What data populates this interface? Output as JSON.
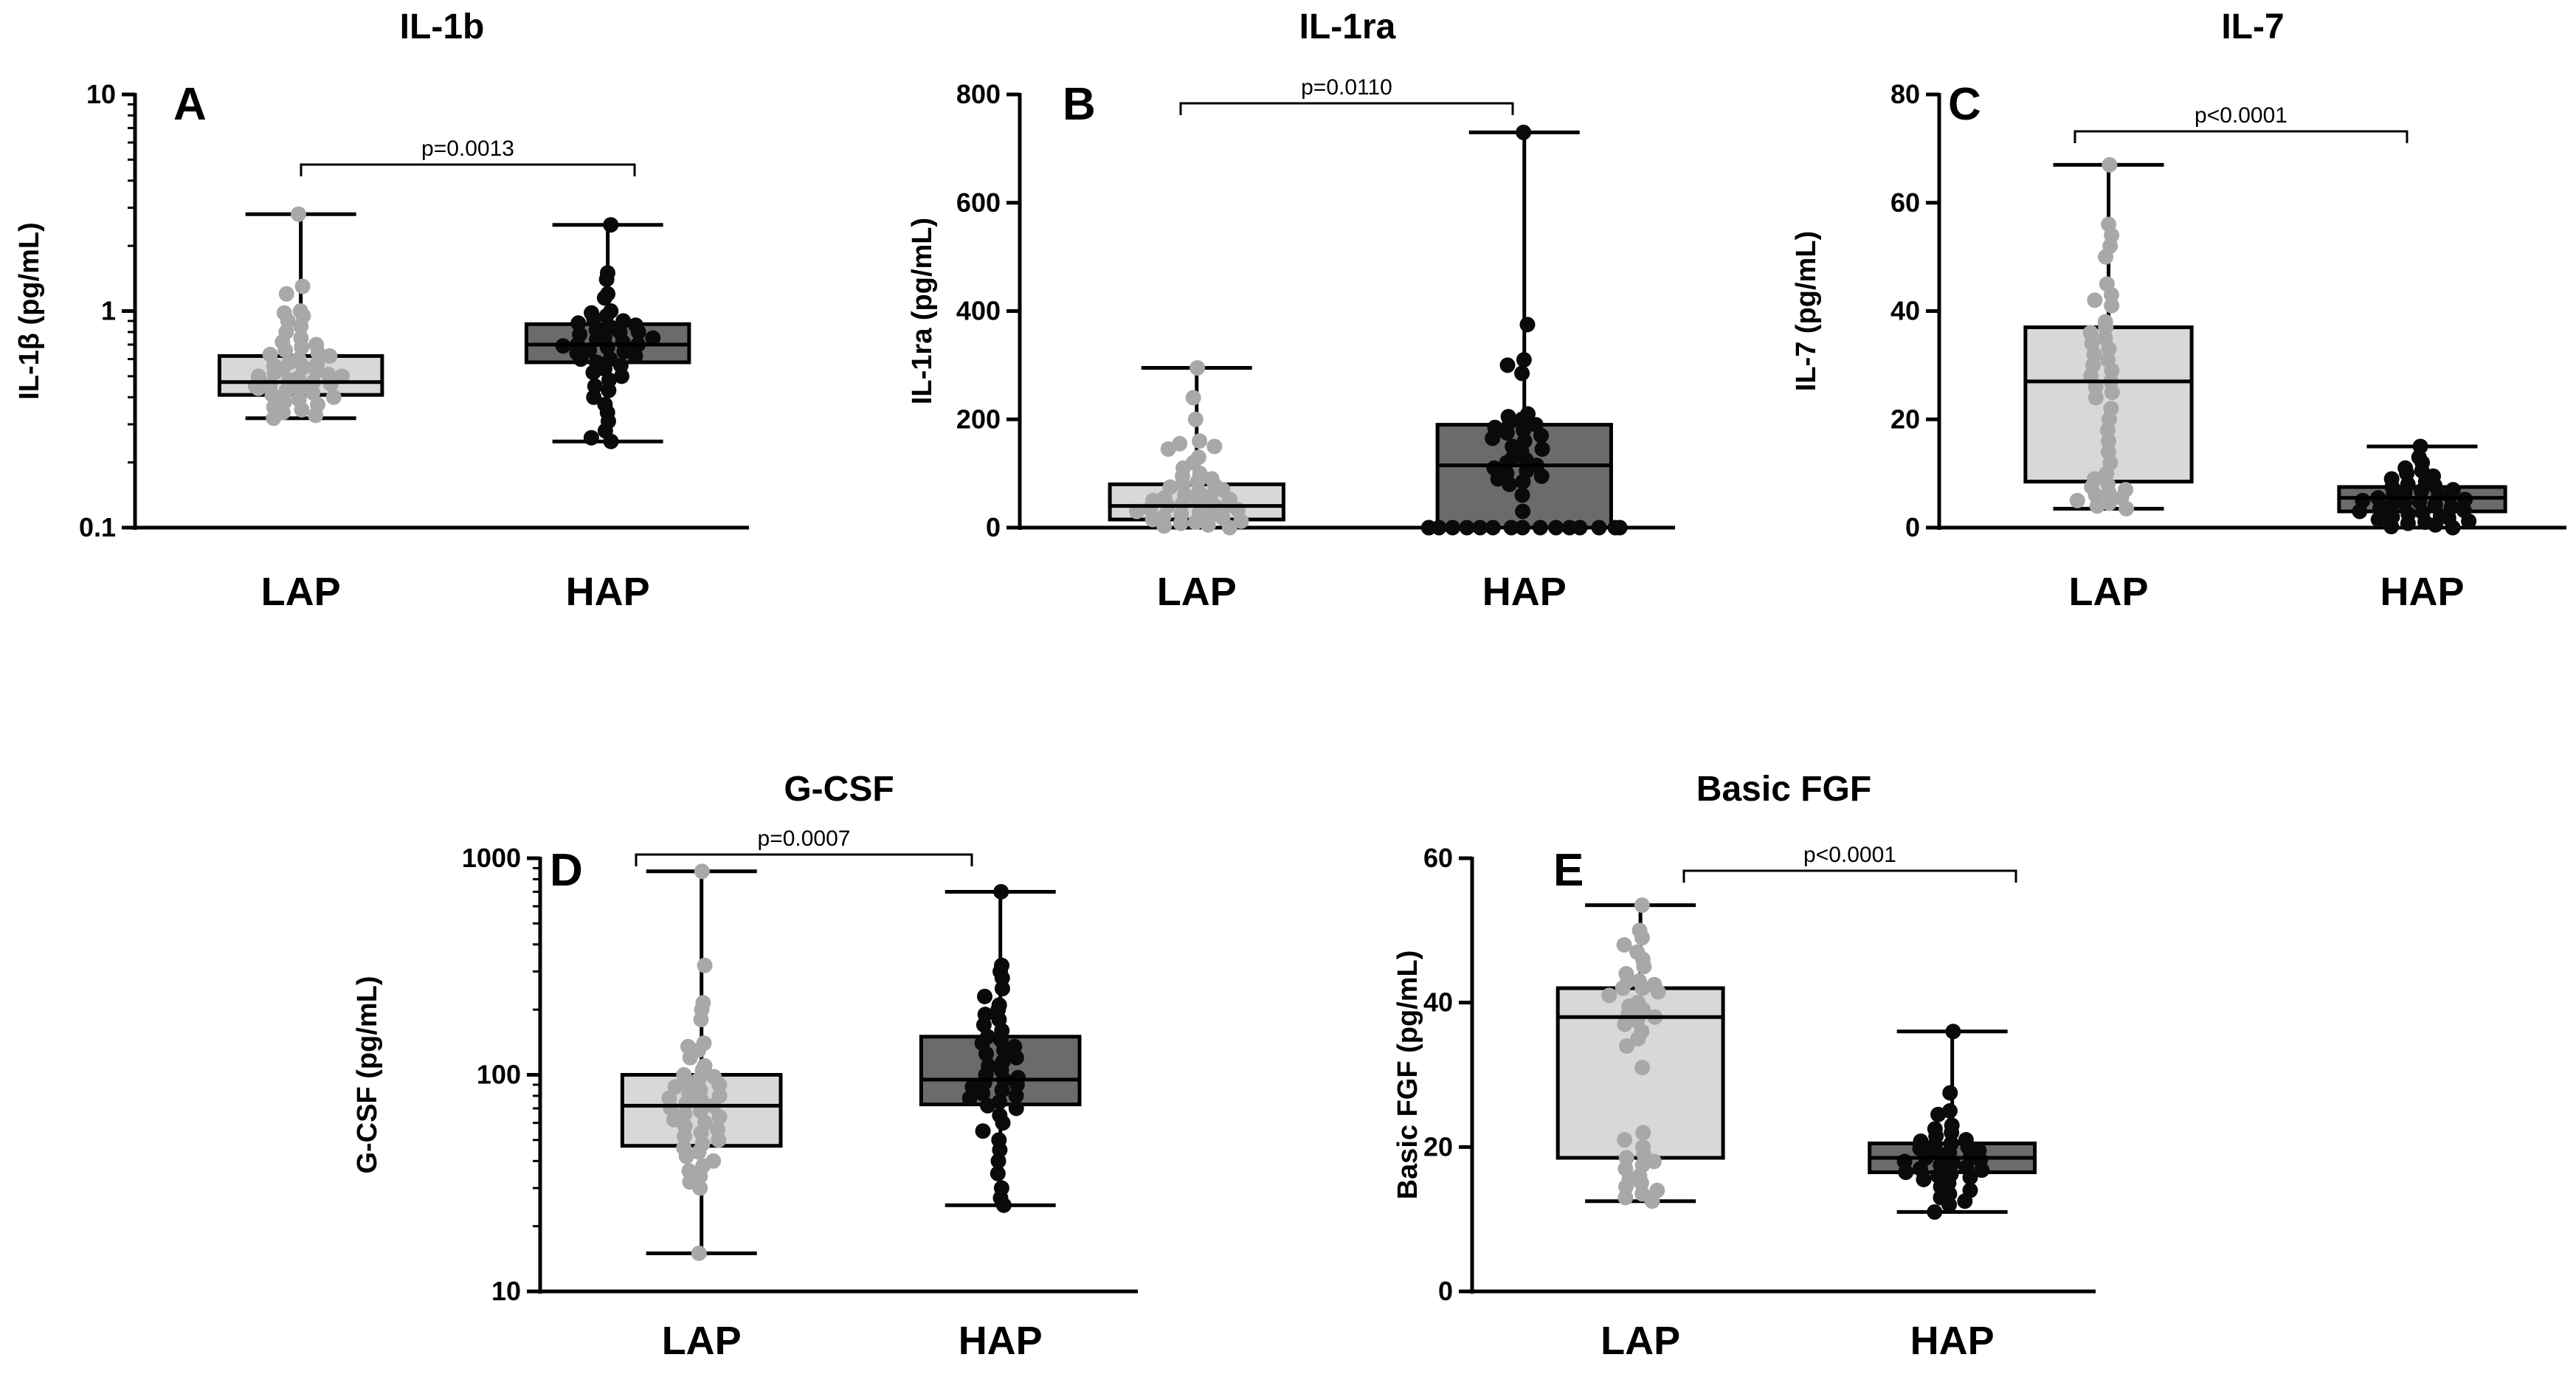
{
  "colors": {
    "lap_box": "#d8d8d8",
    "hap_box": "#6b6b6b",
    "lap_dot": "#a8a8a8",
    "hap_dot": "#0a0a0a",
    "line": "#000000"
  },
  "chart_data": [
    {
      "id": "A",
      "type": "box",
      "title": "IL-1b",
      "letter": "A",
      "ylabel": "IL-1β (pg/mL)",
      "scale": "log",
      "ylim": [
        0.1,
        10
      ],
      "yticks": [
        0.1,
        1,
        10
      ],
      "ytick_labels": [
        "0.1",
        "1",
        "10"
      ],
      "categories": [
        "LAP",
        "HAP"
      ],
      "pvalue": "p=0.0013",
      "groups": [
        {
          "name": "LAP",
          "min": 0.32,
          "q1": 0.41,
          "median": 0.47,
          "q3": 0.62,
          "max": 2.8,
          "points": [
            2.8,
            1.3,
            1.2,
            1.0,
            0.98,
            0.95,
            0.9,
            0.85,
            0.8,
            0.75,
            0.72,
            0.7,
            0.68,
            0.66,
            0.64,
            0.63,
            0.62,
            0.6,
            0.58,
            0.57,
            0.56,
            0.55,
            0.54,
            0.53,
            0.52,
            0.51,
            0.5,
            0.49,
            0.48,
            0.47,
            0.46,
            0.46,
            0.45,
            0.44,
            0.43,
            0.42,
            0.41,
            0.4,
            0.39,
            0.38,
            0.37,
            0.36,
            0.35,
            0.34,
            0.33,
            0.32,
            0.44,
            0.5
          ]
        },
        {
          "name": "HAP",
          "min": 0.25,
          "q1": 0.58,
          "median": 0.7,
          "q3": 0.87,
          "max": 2.5,
          "points": [
            2.5,
            1.5,
            1.4,
            1.2,
            1.15,
            1.0,
            0.98,
            0.95,
            0.92,
            0.9,
            0.88,
            0.86,
            0.84,
            0.82,
            0.8,
            0.78,
            0.76,
            0.74,
            0.72,
            0.7,
            0.7,
            0.69,
            0.68,
            0.66,
            0.65,
            0.64,
            0.62,
            0.6,
            0.58,
            0.56,
            0.54,
            0.52,
            0.5,
            0.48,
            0.45,
            0.43,
            0.4,
            0.37,
            0.34,
            0.31,
            0.28,
            0.26,
            0.25,
            0.75,
            0.8,
            0.6
          ]
        }
      ]
    },
    {
      "id": "B",
      "type": "box",
      "title": "IL-1ra",
      "letter": "B",
      "ylabel": "IL-1ra (pg/mL)",
      "scale": "linear",
      "ylim": [
        0,
        800
      ],
      "yticks": [
        0,
        200,
        400,
        600,
        800
      ],
      "ytick_labels": [
        "0",
        "200",
        "400",
        "600",
        "800"
      ],
      "categories": [
        "LAP",
        "HAP"
      ],
      "pvalue": "p=0.0110",
      "groups": [
        {
          "name": "LAP",
          "min": 0,
          "q1": 15,
          "median": 40,
          "q3": 80,
          "max": 295,
          "points": [
            295,
            240,
            200,
            160,
            155,
            150,
            145,
            130,
            120,
            110,
            100,
            95,
            90,
            85,
            80,
            78,
            75,
            70,
            65,
            60,
            58,
            55,
            52,
            50,
            48,
            45,
            42,
            40,
            38,
            35,
            33,
            30,
            28,
            25,
            22,
            20,
            18,
            15,
            12,
            10,
            8,
            5,
            3,
            0
          ]
        },
        {
          "name": "HAP",
          "min": 0,
          "q1": 0,
          "median": 115,
          "q3": 190,
          "max": 730,
          "points": [
            730,
            375,
            310,
            300,
            285,
            210,
            205,
            200,
            195,
            190,
            185,
            180,
            175,
            170,
            165,
            160,
            150,
            145,
            140,
            130,
            125,
            120,
            115,
            110,
            105,
            100,
            95,
            90,
            85,
            80,
            60,
            30,
            0,
            0,
            0,
            0,
            0,
            0,
            0,
            0,
            0,
            0,
            0,
            0,
            0,
            0,
            0,
            0
          ]
        }
      ]
    },
    {
      "id": "C",
      "type": "box",
      "title": "IL-7",
      "letter": "C",
      "ylabel": "IL-7 (pg/mL)",
      "scale": "linear",
      "ylim": [
        0,
        80
      ],
      "yticks": [
        0,
        20,
        40,
        60,
        80
      ],
      "ytick_labels": [
        "0",
        "20",
        "40",
        "60",
        "80"
      ],
      "categories": [
        "LAP",
        "HAP"
      ],
      "pvalue": "p<0.0001",
      "groups": [
        {
          "name": "LAP",
          "min": 3.5,
          "q1": 8.5,
          "median": 27,
          "q3": 37,
          "max": 67,
          "points": [
            67,
            56,
            54,
            52,
            50,
            45,
            43,
            42,
            41,
            38,
            37,
            36,
            35,
            34,
            33,
            32,
            31,
            30,
            29,
            28,
            27,
            26,
            25,
            24,
            22,
            20,
            18,
            16,
            14,
            12,
            10,
            9,
            8,
            7.5,
            7,
            6.5,
            6,
            5.5,
            5,
            4.5,
            4,
            3.5
          ]
        },
        {
          "name": "HAP",
          "min": 0,
          "q1": 3,
          "median": 5.5,
          "q3": 7.5,
          "max": 15,
          "points": [
            15,
            13,
            12,
            11,
            10.5,
            10,
            9.5,
            9,
            8.5,
            8,
            7.8,
            7.5,
            7,
            6.8,
            6.5,
            6.2,
            6,
            5.8,
            5.5,
            5.2,
            5,
            4.8,
            4.5,
            4.2,
            4,
            3.8,
            3.5,
            3.2,
            3,
            2.8,
            2.5,
            2.2,
            2,
            1.8,
            1.5,
            1.2,
            1,
            0.8,
            0.5,
            0.2,
            0
          ]
        }
      ]
    },
    {
      "id": "D",
      "type": "box",
      "title": "G-CSF",
      "letter": "D",
      "ylabel": "G-CSF (pg/mL)",
      "scale": "log",
      "ylim": [
        10,
        1000
      ],
      "yticks": [
        10,
        100,
        1000
      ],
      "ytick_labels": [
        "10",
        "100",
        "1000"
      ],
      "categories": [
        "LAP",
        "HAP"
      ],
      "pvalue": "p=0.0007",
      "groups": [
        {
          "name": "LAP",
          "min": 15,
          "q1": 47,
          "median": 72,
          "q3": 100,
          "max": 870,
          "points": [
            870,
            320,
            215,
            200,
            180,
            140,
            135,
            130,
            120,
            110,
            105,
            100,
            98,
            95,
            92,
            90,
            88,
            85,
            82,
            80,
            78,
            76,
            74,
            72,
            70,
            68,
            66,
            64,
            62,
            60,
            58,
            56,
            54,
            52,
            50,
            48,
            46,
            44,
            42,
            40,
            38,
            36,
            34,
            32,
            30,
            15
          ]
        },
        {
          "name": "HAP",
          "min": 25,
          "q1": 73,
          "median": 95,
          "q3": 150,
          "max": 700,
          "points": [
            700,
            320,
            300,
            280,
            250,
            230,
            210,
            200,
            190,
            180,
            170,
            160,
            150,
            145,
            140,
            135,
            130,
            125,
            120,
            115,
            110,
            105,
            100,
            97,
            95,
            92,
            90,
            88,
            85,
            82,
            80,
            78,
            75,
            72,
            70,
            65,
            60,
            55,
            50,
            45,
            40,
            35,
            30,
            27,
            25
          ]
        }
      ]
    },
    {
      "id": "E",
      "type": "box",
      "title": "Basic FGF",
      "letter": "E",
      "ylabel": "Basic FGF (pg/mL)",
      "scale": "linear",
      "ylim": [
        0,
        60
      ],
      "yticks": [
        0,
        20,
        40,
        60
      ],
      "ytick_labels": [
        "0",
        "20",
        "40",
        "60"
      ],
      "categories": [
        "LAP",
        "HAP"
      ],
      "pvalue": "p<0.0001",
      "groups": [
        {
          "name": "LAP",
          "min": 12.5,
          "q1": 18.5,
          "median": 38,
          "q3": 42,
          "max": 53.5,
          "points": [
            53.5,
            50,
            49,
            48,
            47,
            46,
            45,
            44,
            43,
            43,
            42.5,
            42,
            42,
            41.5,
            41,
            40,
            39.5,
            39,
            38.5,
            38,
            37.5,
            37,
            36,
            35,
            34,
            31,
            22,
            21,
            20,
            19,
            18.5,
            18,
            17.5,
            17,
            16,
            15.5,
            15,
            14.5,
            14,
            13.5,
            13,
            12.5
          ]
        },
        {
          "name": "HAP",
          "min": 11,
          "q1": 16.5,
          "median": 18.5,
          "q3": 20.5,
          "max": 36,
          "points": [
            36,
            27.5,
            25,
            24.5,
            23,
            22.5,
            22,
            21.5,
            21,
            20.8,
            20.5,
            20.2,
            20,
            19.8,
            19.5,
            19.2,
            19,
            18.8,
            18.5,
            18.2,
            18,
            17.8,
            17.5,
            17.2,
            17,
            16.8,
            16.5,
            16.2,
            16,
            15.8,
            15.5,
            15,
            14.5,
            14,
            13.5,
            13,
            12.5,
            12,
            11
          ]
        }
      ]
    }
  ]
}
